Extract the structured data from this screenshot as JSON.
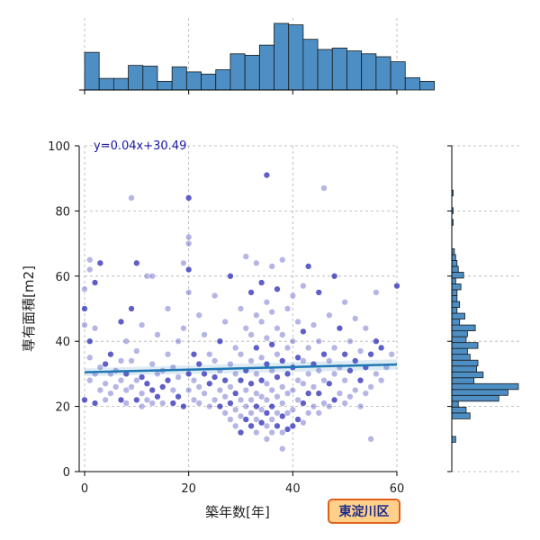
{
  "chart_data": {
    "type": "scatter",
    "xlabel": "築年数[年]",
    "ylabel": "専有面積[m2]",
    "xlim": [
      0,
      60
    ],
    "ylim": [
      0,
      100
    ],
    "x_ticks": [
      "0",
      "20",
      "40",
      "60"
    ],
    "y_ticks": [
      "0",
      "20",
      "40",
      "60",
      "80",
      "100"
    ],
    "grid": true,
    "regression": {
      "label": "y=0.04x+30.49",
      "slope": 0.04,
      "intercept": 30.49
    },
    "badge": "東淀川区",
    "colors": {
      "point": "#2a2ab8",
      "line": "#1f77b4",
      "hist": "#4d8fc4",
      "badge_fill": "#ffd08a",
      "badge_border": "#e0601a"
    },
    "x_hist": {
      "bin_width": 2.8,
      "start": 0,
      "counts": [
        52,
        16,
        16,
        34,
        33,
        12,
        32,
        25,
        22,
        28,
        50,
        48,
        62,
        92,
        90,
        70,
        56,
        58,
        54,
        50,
        46,
        39,
        17,
        12
      ]
    },
    "y_hist": {
      "bin_width": 1.8,
      "start": 9,
      "counts": [
        3,
        0,
        0,
        0,
        14,
        11,
        5,
        36,
        43,
        51,
        17,
        24,
        19,
        20,
        14,
        12,
        20,
        11,
        12,
        18,
        6,
        10,
        4,
        6,
        4,
        4,
        7,
        3,
        9,
        5,
        4,
        3,
        2,
        0,
        0,
        0,
        0,
        1,
        0,
        1,
        0,
        0,
        1
      ]
    },
    "scatter_points": [
      [
        0,
        50
      ],
      [
        0,
        45
      ],
      [
        0,
        56
      ],
      [
        0,
        22
      ],
      [
        1,
        28
      ],
      [
        1,
        35
      ],
      [
        1,
        40
      ],
      [
        1,
        62
      ],
      [
        1,
        65
      ],
      [
        2,
        21
      ],
      [
        2,
        30
      ],
      [
        2,
        44
      ],
      [
        2,
        58
      ],
      [
        3,
        25
      ],
      [
        3,
        32
      ],
      [
        3,
        64
      ],
      [
        4,
        22
      ],
      [
        4,
        27
      ],
      [
        4,
        33
      ],
      [
        5,
        24
      ],
      [
        5,
        30
      ],
      [
        5,
        36
      ],
      [
        6,
        26
      ],
      [
        6,
        31
      ],
      [
        7,
        22
      ],
      [
        7,
        28
      ],
      [
        7,
        34
      ],
      [
        7,
        46
      ],
      [
        8,
        21
      ],
      [
        8,
        25
      ],
      [
        8,
        30
      ],
      [
        8,
        40
      ],
      [
        9,
        84
      ],
      [
        9,
        50
      ],
      [
        9,
        26
      ],
      [
        9,
        34
      ],
      [
        10,
        22
      ],
      [
        10,
        28
      ],
      [
        10,
        37
      ],
      [
        10,
        64
      ],
      [
        11,
        20
      ],
      [
        11,
        24
      ],
      [
        11,
        29
      ],
      [
        11,
        45
      ],
      [
        12,
        22
      ],
      [
        12,
        27
      ],
      [
        12,
        60
      ],
      [
        13,
        21
      ],
      [
        13,
        25
      ],
      [
        13,
        33
      ],
      [
        13,
        60
      ],
      [
        14,
        23
      ],
      [
        14,
        30
      ],
      [
        14,
        42
      ],
      [
        15,
        26
      ],
      [
        15,
        31
      ],
      [
        15,
        21
      ],
      [
        16,
        28
      ],
      [
        16,
        36
      ],
      [
        16,
        50
      ],
      [
        17,
        21
      ],
      [
        17,
        25
      ],
      [
        17,
        32
      ],
      [
        18,
        23
      ],
      [
        18,
        29
      ],
      [
        18,
        40
      ],
      [
        19,
        20
      ],
      [
        19,
        44
      ],
      [
        19,
        64
      ],
      [
        20,
        84
      ],
      [
        20,
        70
      ],
      [
        20,
        72
      ],
      [
        20,
        62
      ],
      [
        20,
        55
      ],
      [
        20,
        25
      ],
      [
        20,
        30
      ],
      [
        21,
        22
      ],
      [
        21,
        28
      ],
      [
        21,
        36
      ],
      [
        22,
        21
      ],
      [
        22,
        26
      ],
      [
        22,
        33
      ],
      [
        22,
        48
      ],
      [
        23,
        24
      ],
      [
        23,
        30
      ],
      [
        23,
        42
      ],
      [
        24,
        20
      ],
      [
        24,
        27
      ],
      [
        24,
        36
      ],
      [
        25,
        22
      ],
      [
        25,
        29
      ],
      [
        25,
        34
      ],
      [
        25,
        54
      ],
      [
        26,
        20
      ],
      [
        26,
        25
      ],
      [
        26,
        31
      ],
      [
        26,
        40
      ],
      [
        27,
        18
      ],
      [
        27,
        23
      ],
      [
        27,
        28
      ],
      [
        27,
        46
      ],
      [
        28,
        16
      ],
      [
        28,
        21
      ],
      [
        28,
        26
      ],
      [
        28,
        33
      ],
      [
        28,
        60
      ],
      [
        29,
        14
      ],
      [
        29,
        19
      ],
      [
        29,
        24
      ],
      [
        29,
        30
      ],
      [
        29,
        38
      ],
      [
        30,
        12
      ],
      [
        30,
        17
      ],
      [
        30,
        22
      ],
      [
        30,
        28
      ],
      [
        30,
        36
      ],
      [
        30,
        50
      ],
      [
        31,
        16
      ],
      [
        31,
        20
      ],
      [
        31,
        25
      ],
      [
        31,
        31
      ],
      [
        31,
        44
      ],
      [
        31,
        66
      ],
      [
        32,
        14
      ],
      [
        32,
        18
      ],
      [
        32,
        22
      ],
      [
        32,
        27
      ],
      [
        32,
        34
      ],
      [
        32,
        42
      ],
      [
        32,
        55
      ],
      [
        33,
        12
      ],
      [
        33,
        16
      ],
      [
        33,
        20
      ],
      [
        33,
        24
      ],
      [
        33,
        30
      ],
      [
        33,
        38
      ],
      [
        33,
        48
      ],
      [
        33,
        64
      ],
      [
        34,
        15
      ],
      [
        34,
        19
      ],
      [
        34,
        23
      ],
      [
        34,
        28
      ],
      [
        34,
        35
      ],
      [
        34,
        46
      ],
      [
        34,
        58
      ],
      [
        35,
        10
      ],
      [
        35,
        14
      ],
      [
        35,
        18
      ],
      [
        35,
        22
      ],
      [
        35,
        27
      ],
      [
        35,
        33
      ],
      [
        35,
        41
      ],
      [
        35,
        52
      ],
      [
        35,
        91
      ],
      [
        36,
        12
      ],
      [
        36,
        16
      ],
      [
        36,
        20
      ],
      [
        36,
        25
      ],
      [
        36,
        31
      ],
      [
        36,
        39
      ],
      [
        36,
        49
      ],
      [
        36,
        63
      ],
      [
        37,
        14
      ],
      [
        37,
        18
      ],
      [
        37,
        23
      ],
      [
        37,
        29
      ],
      [
        37,
        36
      ],
      [
        37,
        44
      ],
      [
        37,
        56
      ],
      [
        38,
        7
      ],
      [
        38,
        12
      ],
      [
        38,
        17
      ],
      [
        38,
        21
      ],
      [
        38,
        26
      ],
      [
        38,
        34
      ],
      [
        38,
        42
      ],
      [
        38,
        65
      ],
      [
        39,
        13
      ],
      [
        39,
        18
      ],
      [
        39,
        24
      ],
      [
        39,
        30
      ],
      [
        39,
        38
      ],
      [
        39,
        50
      ],
      [
        40,
        14
      ],
      [
        40,
        19
      ],
      [
        40,
        25
      ],
      [
        40,
        32
      ],
      [
        40,
        40
      ],
      [
        40,
        54
      ],
      [
        41,
        16
      ],
      [
        41,
        22
      ],
      [
        41,
        28
      ],
      [
        41,
        35
      ],
      [
        41,
        46
      ],
      [
        42,
        15
      ],
      [
        42,
        21
      ],
      [
        42,
        27
      ],
      [
        42,
        34
      ],
      [
        42,
        43
      ],
      [
        42,
        57
      ],
      [
        43,
        18
      ],
      [
        43,
        24
      ],
      [
        43,
        30
      ],
      [
        43,
        38
      ],
      [
        43,
        63
      ],
      [
        44,
        20
      ],
      [
        44,
        26
      ],
      [
        44,
        33
      ],
      [
        44,
        45
      ],
      [
        45,
        18
      ],
      [
        45,
        24
      ],
      [
        45,
        31
      ],
      [
        45,
        40
      ],
      [
        45,
        55
      ],
      [
        46,
        21
      ],
      [
        46,
        28
      ],
      [
        46,
        36
      ],
      [
        46,
        87
      ],
      [
        47,
        20
      ],
      [
        47,
        27
      ],
      [
        47,
        34
      ],
      [
        47,
        48
      ],
      [
        48,
        22
      ],
      [
        48,
        30
      ],
      [
        48,
        38
      ],
      [
        48,
        60
      ],
      [
        49,
        24
      ],
      [
        49,
        32
      ],
      [
        49,
        44
      ],
      [
        50,
        21
      ],
      [
        50,
        28
      ],
      [
        50,
        36
      ],
      [
        50,
        52
      ],
      [
        51,
        23
      ],
      [
        51,
        31
      ],
      [
        51,
        40
      ],
      [
        52,
        25
      ],
      [
        52,
        34
      ],
      [
        52,
        47
      ],
      [
        53,
        20
      ],
      [
        53,
        28
      ],
      [
        53,
        37
      ],
      [
        54,
        24
      ],
      [
        54,
        32
      ],
      [
        54,
        44
      ],
      [
        55,
        26
      ],
      [
        55,
        36
      ],
      [
        55,
        10
      ],
      [
        56,
        30
      ],
      [
        56,
        40
      ],
      [
        56,
        55
      ],
      [
        57,
        28
      ],
      [
        57,
        38
      ],
      [
        58,
        32
      ],
      [
        59,
        36
      ],
      [
        60,
        57
      ]
    ]
  }
}
